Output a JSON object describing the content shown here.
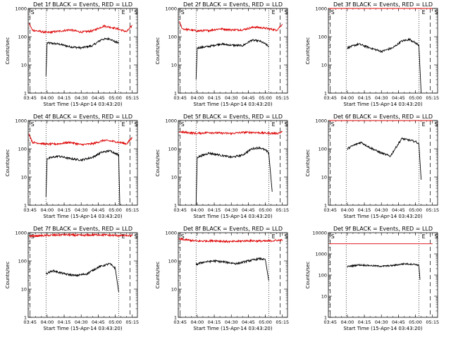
{
  "figure": {
    "xticks": [
      "03:45",
      "04:00",
      "04:15",
      "04:30",
      "04:45",
      "05:00",
      "05:15"
    ],
    "xlabel": "Start Time (15-Apr-14 03:43:20)",
    "ylabel": "Counts/sec",
    "colors": {
      "events": "#000000",
      "lld": "#dd0000"
    }
  },
  "chart_data": [
    {
      "type": "line",
      "title": "Det 1f BLACK = Events, RED = LLD",
      "xlim": [
        "03:43:20",
        "05:19:30"
      ],
      "ylim": [
        1,
        1000
      ],
      "yscale": "log",
      "ytick_labels": [
        "1",
        "10",
        "100",
        "1000"
      ],
      "markers": [
        {
          "label": "S",
          "x": "03:45"
        },
        {
          "label": "E",
          "x": "05:05"
        },
        {
          "label": "S",
          "x": "05:16"
        }
      ],
      "dashed_lines": [
        "03:45",
        "05:13"
      ],
      "dotted_lines": [
        "03:59",
        "05:03"
      ],
      "series": [
        {
          "name": "Events",
          "color": "#000000",
          "points": [
            [
              "03:59",
              4
            ],
            [
              "04:00",
              60
            ],
            [
              "04:10",
              55
            ],
            [
              "04:20",
              44
            ],
            [
              "04:30",
              40
            ],
            [
              "04:40",
              48
            ],
            [
              "04:48",
              80
            ],
            [
              "04:55",
              85
            ],
            [
              "05:00",
              65
            ],
            [
              "05:03",
              60
            ]
          ]
        },
        {
          "name": "LLD",
          "color": "#dd0000",
          "points": [
            [
              "03:44",
              300
            ],
            [
              "03:47",
              170
            ],
            [
              "04:00",
              140
            ],
            [
              "04:10",
              155
            ],
            [
              "04:20",
              175
            ],
            [
              "04:30",
              145
            ],
            [
              "04:40",
              160
            ],
            [
              "04:50",
              240
            ],
            [
              "05:00",
              200
            ],
            [
              "05:10",
              150
            ],
            [
              "05:15",
              250
            ]
          ]
        }
      ]
    },
    {
      "type": "line",
      "title": "Det 2f BLACK = Events, RED = LLD",
      "xlim": [
        "03:43:20",
        "05:19:30"
      ],
      "ylim": [
        1,
        1000
      ],
      "yscale": "log",
      "ytick_labels": [
        "1",
        "10",
        "100",
        "1000"
      ],
      "markers": [
        {
          "label": "S",
          "x": "03:45"
        },
        {
          "label": "E",
          "x": "05:05"
        },
        {
          "label": "S",
          "x": "05:16"
        }
      ],
      "dashed_lines": [
        "03:45",
        "05:13"
      ],
      "dotted_lines": [
        "03:59",
        "05:03"
      ],
      "series": [
        {
          "name": "Events",
          "color": "#000000",
          "points": [
            [
              "03:59",
              3
            ],
            [
              "04:00",
              40
            ],
            [
              "04:10",
              45
            ],
            [
              "04:20",
              55
            ],
            [
              "04:30",
              50
            ],
            [
              "04:40",
              48
            ],
            [
              "04:48",
              75
            ],
            [
              "04:55",
              70
            ],
            [
              "05:00",
              55
            ],
            [
              "05:03",
              45
            ]
          ]
        },
        {
          "name": "LLD",
          "color": "#dd0000",
          "points": [
            [
              "03:44",
              350
            ],
            [
              "03:47",
              190
            ],
            [
              "04:00",
              160
            ],
            [
              "04:10",
              165
            ],
            [
              "04:20",
              190
            ],
            [
              "04:30",
              175
            ],
            [
              "04:40",
              175
            ],
            [
              "04:50",
              220
            ],
            [
              "05:00",
              200
            ],
            [
              "05:10",
              170
            ],
            [
              "05:15",
              280
            ]
          ]
        }
      ]
    },
    {
      "type": "line",
      "title": "Det 3f BLACK = Events, RED = LLD",
      "xlim": [
        "03:43:20",
        "05:19:30"
      ],
      "ylim": [
        1,
        1000
      ],
      "yscale": "log",
      "ytick_labels": [
        "1",
        "10",
        "100",
        "1000"
      ],
      "markers": [
        {
          "label": "S",
          "x": "03:45"
        },
        {
          "label": "E",
          "x": "05:05"
        },
        {
          "label": "S",
          "x": "05:16"
        }
      ],
      "dashed_lines": [
        "03:45",
        "05:13"
      ],
      "dotted_lines": [
        "03:59",
        "05:03"
      ],
      "series": [
        {
          "name": "Events",
          "color": "#000000",
          "points": [
            [
              "04:00",
              40
            ],
            [
              "04:10",
              55
            ],
            [
              "04:20",
              40
            ],
            [
              "04:30",
              30
            ],
            [
              "04:40",
              40
            ],
            [
              "04:48",
              70
            ],
            [
              "04:55",
              80
            ],
            [
              "05:00",
              60
            ],
            [
              "05:03",
              50
            ],
            [
              "05:05",
              1
            ]
          ]
        },
        {
          "name": "LLD",
          "color": "#dd0000",
          "points": [
            [
              "03:44",
              1000
            ],
            [
              "05:15",
              1000
            ]
          ]
        }
      ]
    },
    {
      "type": "line",
      "title": "Det 4f BLACK = Events, RED = LLD",
      "xlim": [
        "03:43:20",
        "05:19:30"
      ],
      "ylim": [
        1,
        1000
      ],
      "yscale": "log",
      "ytick_labels": [
        "1",
        "10",
        "100",
        "1000"
      ],
      "markers": [
        {
          "label": "S",
          "x": "03:45"
        },
        {
          "label": "E",
          "x": "05:05"
        },
        {
          "label": "S",
          "x": "05:16"
        }
      ],
      "dashed_lines": [
        "03:45",
        "05:13"
      ],
      "dotted_lines": [
        "03:59",
        "05:03"
      ],
      "series": [
        {
          "name": "Events",
          "color": "#000000",
          "points": [
            [
              "03:59",
              2
            ],
            [
              "04:00",
              45
            ],
            [
              "04:10",
              55
            ],
            [
              "04:20",
              45
            ],
            [
              "04:30",
              40
            ],
            [
              "04:40",
              50
            ],
            [
              "04:48",
              75
            ],
            [
              "04:55",
              85
            ],
            [
              "05:00",
              70
            ],
            [
              "05:03",
              60
            ],
            [
              "05:04",
              1
            ]
          ]
        },
        {
          "name": "LLD",
          "color": "#dd0000",
          "points": [
            [
              "03:44",
              350
            ],
            [
              "03:47",
              170
            ],
            [
              "04:00",
              145
            ],
            [
              "04:10",
              150
            ],
            [
              "04:20",
              170
            ],
            [
              "04:30",
              140
            ],
            [
              "04:40",
              150
            ],
            [
              "04:50",
              200
            ],
            [
              "05:00",
              180
            ],
            [
              "05:10",
              150
            ],
            [
              "05:15",
              250
            ]
          ]
        }
      ]
    },
    {
      "type": "line",
      "title": "Det 5f BLACK = Events, RED = LLD",
      "xlim": [
        "03:43:20",
        "05:19:30"
      ],
      "ylim": [
        1,
        1000
      ],
      "yscale": "log",
      "ytick_labels": [
        "1",
        "10",
        "100",
        "1000"
      ],
      "markers": [
        {
          "label": "S",
          "x": "03:45"
        },
        {
          "label": "E",
          "x": "05:05"
        },
        {
          "label": "S",
          "x": "05:16"
        }
      ],
      "dashed_lines": [
        "03:45",
        "05:13"
      ],
      "dotted_lines": [
        "03:59",
        "05:03"
      ],
      "series": [
        {
          "name": "Events",
          "color": "#000000",
          "points": [
            [
              "03:59",
              1
            ],
            [
              "04:00",
              50
            ],
            [
              "04:10",
              70
            ],
            [
              "04:20",
              60
            ],
            [
              "04:30",
              50
            ],
            [
              "04:40",
              60
            ],
            [
              "04:48",
              100
            ],
            [
              "04:55",
              110
            ],
            [
              "05:00",
              90
            ],
            [
              "05:03",
              70
            ],
            [
              "05:06",
              3
            ]
          ]
        },
        {
          "name": "LLD",
          "color": "#dd0000",
          "points": [
            [
              "03:44",
              400
            ],
            [
              "04:00",
              350
            ],
            [
              "04:10",
              380
            ],
            [
              "04:20",
              360
            ],
            [
              "04:30",
              350
            ],
            [
              "04:40",
              380
            ],
            [
              "04:50",
              380
            ],
            [
              "05:00",
              360
            ],
            [
              "05:10",
              350
            ],
            [
              "05:15",
              400
            ]
          ]
        }
      ]
    },
    {
      "type": "line",
      "title": "Det 6f BLACK = Events, RED = LLD",
      "xlim": [
        "03:43:20",
        "05:19:30"
      ],
      "ylim": [
        1,
        1000
      ],
      "yscale": "log",
      "ytick_labels": [
        "1",
        "10",
        "100",
        "1000"
      ],
      "markers": [
        {
          "label": "S",
          "x": "03:45"
        },
        {
          "label": "E",
          "x": "05:05"
        },
        {
          "label": "S",
          "x": "05:16"
        }
      ],
      "dashed_lines": [
        "03:45",
        "05:13"
      ],
      "dotted_lines": [
        "03:59",
        "05:03"
      ],
      "series": [
        {
          "name": "Events",
          "color": "#000000",
          "points": [
            [
              "04:00",
              100
            ],
            [
              "04:05",
              130
            ],
            [
              "04:12",
              170
            ],
            [
              "04:20",
              110
            ],
            [
              "04:30",
              70
            ],
            [
              "04:38",
              55
            ],
            [
              "04:42",
              100
            ],
            [
              "04:48",
              230
            ],
            [
              "04:55",
              200
            ],
            [
              "05:00",
              180
            ],
            [
              "05:03",
              150
            ],
            [
              "05:05",
              8
            ]
          ]
        },
        {
          "name": "LLD",
          "color": "#dd0000",
          "points": [
            [
              "03:44",
              1000
            ],
            [
              "05:15",
              1000
            ]
          ]
        }
      ]
    },
    {
      "type": "line",
      "title": "Det 7f BLACK = Events, RED = LLD",
      "xlim": [
        "03:43:20",
        "05:19:30"
      ],
      "ylim": [
        1,
        1000
      ],
      "yscale": "log",
      "ytick_labels": [
        "1",
        "10",
        "100",
        "1000"
      ],
      "markers": [
        {
          "label": "S",
          "x": "03:45"
        },
        {
          "label": "E",
          "x": "05:05"
        },
        {
          "label": "S",
          "x": "05:16"
        }
      ],
      "dashed_lines": [
        "03:45",
        "05:13"
      ],
      "dotted_lines": [
        "03:59",
        "05:03"
      ],
      "series": [
        {
          "name": "Events",
          "color": "#000000",
          "points": [
            [
              "03:59",
              35
            ],
            [
              "04:05",
              45
            ],
            [
              "04:15",
              35
            ],
            [
              "04:25",
              30
            ],
            [
              "04:35",
              35
            ],
            [
              "04:45",
              60
            ],
            [
              "04:55",
              80
            ],
            [
              "05:00",
              55
            ],
            [
              "05:03",
              8
            ]
          ]
        },
        {
          "name": "LLD",
          "color": "#dd0000",
          "points": [
            [
              "03:44",
              750
            ],
            [
              "04:00",
              800
            ],
            [
              "04:15",
              850
            ],
            [
              "04:30",
              800
            ],
            [
              "04:45",
              850
            ],
            [
              "05:00",
              800
            ],
            [
              "05:15",
              780
            ]
          ]
        }
      ]
    },
    {
      "type": "line",
      "title": "Det 8f BLACK = Events, RED = LLD",
      "xlim": [
        "03:43:20",
        "05:19:30"
      ],
      "ylim": [
        1,
        1000
      ],
      "yscale": "log",
      "ytick_labels": [
        "1",
        "10",
        "100",
        "1000"
      ],
      "markers": [
        {
          "label": "S",
          "x": "03:45"
        },
        {
          "label": "E",
          "x": "05:05"
        },
        {
          "label": "S",
          "x": "05:16"
        }
      ],
      "dashed_lines": [
        "03:45",
        "05:13"
      ],
      "dotted_lines": [
        "03:59",
        "05:03"
      ],
      "series": [
        {
          "name": "Events",
          "color": "#000000",
          "points": [
            [
              "03:59",
              75
            ],
            [
              "04:05",
              90
            ],
            [
              "04:15",
              100
            ],
            [
              "04:25",
              90
            ],
            [
              "04:35",
              80
            ],
            [
              "04:45",
              100
            ],
            [
              "04:55",
              120
            ],
            [
              "05:00",
              110
            ],
            [
              "05:03",
              20
            ]
          ]
        },
        {
          "name": "LLD",
          "color": "#dd0000",
          "points": [
            [
              "03:44",
              600
            ],
            [
              "04:00",
              500
            ],
            [
              "04:15",
              520
            ],
            [
              "04:30",
              480
            ],
            [
              "04:45",
              520
            ],
            [
              "05:00",
              500
            ],
            [
              "05:15",
              550
            ]
          ]
        }
      ]
    },
    {
      "type": "line",
      "title": "Det 9f BLACK = Events, RED = LLD",
      "xlim": [
        "03:43:20",
        "05:19:30"
      ],
      "ylim": [
        1,
        10000
      ],
      "yscale": "log",
      "ytick_labels": [
        "1",
        "10",
        "100",
        "1000",
        "10000"
      ],
      "markers": [
        {
          "label": "S",
          "x": "03:45"
        },
        {
          "label": "E",
          "x": "05:05"
        },
        {
          "label": "S",
          "x": "05:16"
        }
      ],
      "dashed_lines": [
        "03:45",
        "05:13"
      ],
      "dotted_lines": [
        "03:59",
        "05:03"
      ],
      "series": [
        {
          "name": "Events",
          "color": "#000000",
          "points": [
            [
              "04:00",
              250
            ],
            [
              "04:10",
              300
            ],
            [
              "04:20",
              280
            ],
            [
              "04:30",
              260
            ],
            [
              "04:40",
              280
            ],
            [
              "04:50",
              340
            ],
            [
              "05:00",
              320
            ],
            [
              "05:03",
              280
            ],
            [
              "05:04",
              60
            ]
          ]
        },
        {
          "name": "LLD",
          "color": "#dd0000",
          "points": [
            [
              "03:44",
              3000
            ],
            [
              "05:15",
              3000
            ]
          ]
        }
      ]
    }
  ]
}
